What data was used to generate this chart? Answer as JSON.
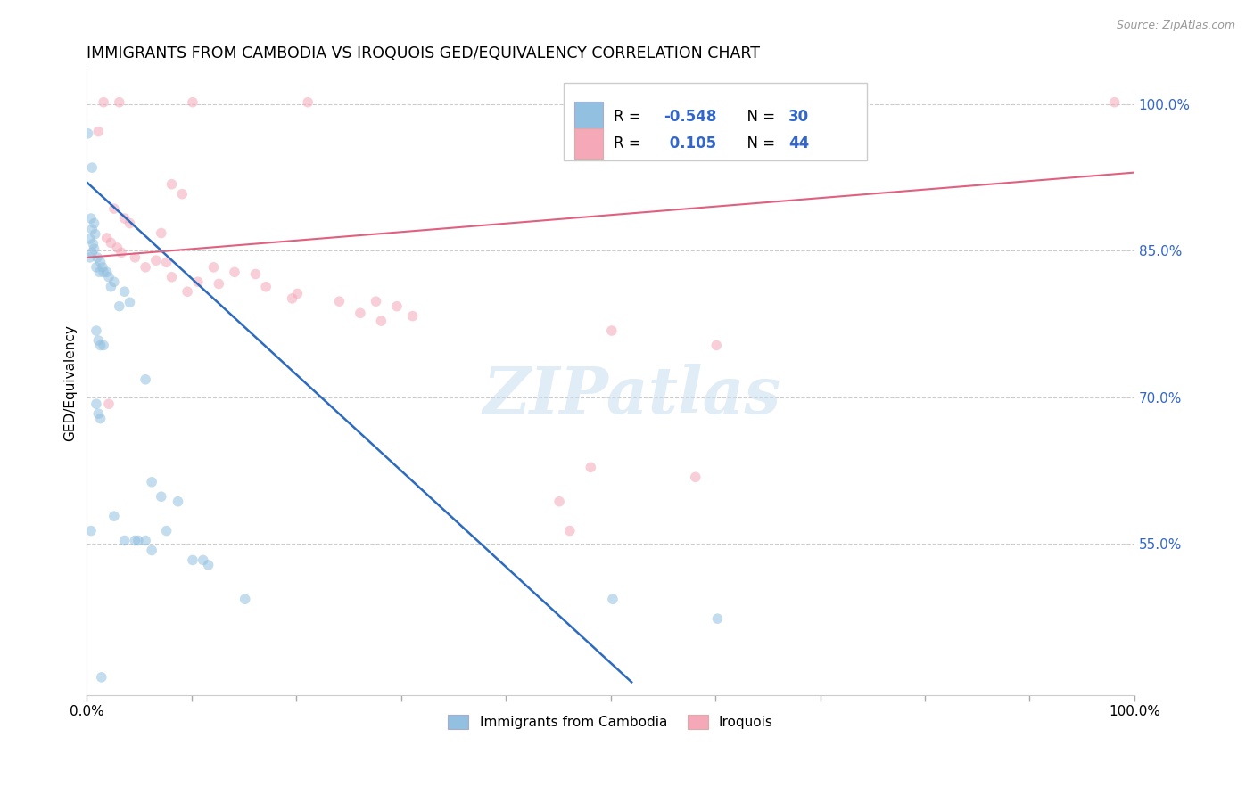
{
  "title": "IMMIGRANTS FROM CAMBODIA VS IROQUOIS GED/EQUIVALENCY CORRELATION CHART",
  "source": "Source: ZipAtlas.com",
  "ylabel": "GED/Equivalency",
  "ytick_values": [
    1.0,
    0.85,
    0.7,
    0.55
  ],
  "ytick_labels": [
    "100.0%",
    "85.0%",
    "70.0%",
    "55.0%"
  ],
  "xtick_values": [
    0.0,
    0.1,
    0.2,
    0.3,
    0.4,
    0.5,
    0.6,
    0.7,
    0.8,
    0.9,
    1.0
  ],
  "blue_scatter": [
    [
      0.001,
      0.97
    ],
    [
      0.005,
      0.935
    ],
    [
      0.004,
      0.883
    ],
    [
      0.007,
      0.878
    ],
    [
      0.005,
      0.872
    ],
    [
      0.008,
      0.867
    ],
    [
      0.003,
      0.862
    ],
    [
      0.006,
      0.857
    ],
    [
      0.007,
      0.852
    ],
    [
      0.005,
      0.848
    ],
    [
      0.01,
      0.843
    ],
    [
      0.003,
      0.843
    ],
    [
      0.013,
      0.838
    ],
    [
      0.009,
      0.833
    ],
    [
      0.015,
      0.833
    ],
    [
      0.016,
      0.828
    ],
    [
      0.012,
      0.828
    ],
    [
      0.019,
      0.828
    ],
    [
      0.021,
      0.823
    ],
    [
      0.026,
      0.818
    ],
    [
      0.023,
      0.813
    ],
    [
      0.036,
      0.808
    ],
    [
      0.041,
      0.797
    ],
    [
      0.031,
      0.793
    ],
    [
      0.009,
      0.768
    ],
    [
      0.011,
      0.758
    ],
    [
      0.013,
      0.753
    ],
    [
      0.016,
      0.753
    ],
    [
      0.056,
      0.718
    ],
    [
      0.009,
      0.693
    ],
    [
      0.011,
      0.683
    ],
    [
      0.013,
      0.678
    ],
    [
      0.062,
      0.613
    ],
    [
      0.071,
      0.598
    ],
    [
      0.087,
      0.593
    ],
    [
      0.026,
      0.578
    ],
    [
      0.076,
      0.563
    ],
    [
      0.004,
      0.563
    ],
    [
      0.036,
      0.553
    ],
    [
      0.049,
      0.553
    ],
    [
      0.056,
      0.553
    ],
    [
      0.046,
      0.553
    ],
    [
      0.062,
      0.543
    ],
    [
      0.111,
      0.533
    ],
    [
      0.101,
      0.533
    ],
    [
      0.116,
      0.528
    ],
    [
      0.151,
      0.493
    ],
    [
      0.502,
      0.493
    ],
    [
      0.602,
      0.473
    ],
    [
      0.014,
      0.413
    ]
  ],
  "pink_scatter": [
    [
      0.016,
      1.002
    ],
    [
      0.031,
      1.002
    ],
    [
      0.101,
      1.002
    ],
    [
      0.211,
      1.002
    ],
    [
      0.981,
      1.002
    ],
    [
      0.011,
      0.972
    ],
    [
      0.081,
      0.918
    ],
    [
      0.091,
      0.908
    ],
    [
      0.026,
      0.893
    ],
    [
      0.036,
      0.883
    ],
    [
      0.041,
      0.878
    ],
    [
      0.071,
      0.868
    ],
    [
      0.019,
      0.863
    ],
    [
      0.023,
      0.858
    ],
    [
      0.029,
      0.853
    ],
    [
      0.033,
      0.848
    ],
    [
      0.046,
      0.843
    ],
    [
      0.066,
      0.84
    ],
    [
      0.076,
      0.838
    ],
    [
      0.056,
      0.833
    ],
    [
      0.121,
      0.833
    ],
    [
      0.141,
      0.828
    ],
    [
      0.161,
      0.826
    ],
    [
      0.081,
      0.823
    ],
    [
      0.106,
      0.818
    ],
    [
      0.126,
      0.816
    ],
    [
      0.171,
      0.813
    ],
    [
      0.096,
      0.808
    ],
    [
      0.201,
      0.806
    ],
    [
      0.196,
      0.801
    ],
    [
      0.241,
      0.798
    ],
    [
      0.276,
      0.798
    ],
    [
      0.296,
      0.793
    ],
    [
      0.261,
      0.786
    ],
    [
      0.311,
      0.783
    ],
    [
      0.281,
      0.778
    ],
    [
      0.501,
      0.768
    ],
    [
      0.601,
      0.753
    ],
    [
      0.021,
      0.693
    ],
    [
      0.481,
      0.628
    ],
    [
      0.581,
      0.618
    ],
    [
      0.451,
      0.593
    ],
    [
      0.461,
      0.563
    ]
  ],
  "blue_line_x": [
    0.0,
    0.52
  ],
  "blue_line_y": [
    0.92,
    0.408
  ],
  "pink_line_x": [
    0.0,
    1.0
  ],
  "pink_line_y": [
    0.843,
    0.93
  ],
  "scatter_size": 70,
  "scatter_alpha": 0.55,
  "blue_color": "#92c0e0",
  "pink_color": "#f4a8b8",
  "blue_line_color": "#2d6bbf",
  "pink_line_color": "#e06080",
  "watermark_text": "ZIPatlas",
  "watermark_color": "#c8ddf0",
  "watermark_alpha": 0.55,
  "background_color": "#ffffff",
  "grid_color": "#cccccc",
  "legend_blue_label_R": "R = ",
  "legend_blue_R_val": "-0.548",
  "legend_blue_N": "N = ",
  "legend_blue_N_val": "30",
  "legend_pink_label_R": "R =  ",
  "legend_pink_R_val": "0.105",
  "legend_pink_N": "N = ",
  "legend_pink_N_val": "44",
  "blue_text_color": "#3366cc",
  "bottom_legend_blue": "Immigrants from Cambodia",
  "bottom_legend_pink": "Iroquois",
  "xlim": [
    0.0,
    1.0
  ],
  "ylim": [
    0.395,
    1.035
  ]
}
